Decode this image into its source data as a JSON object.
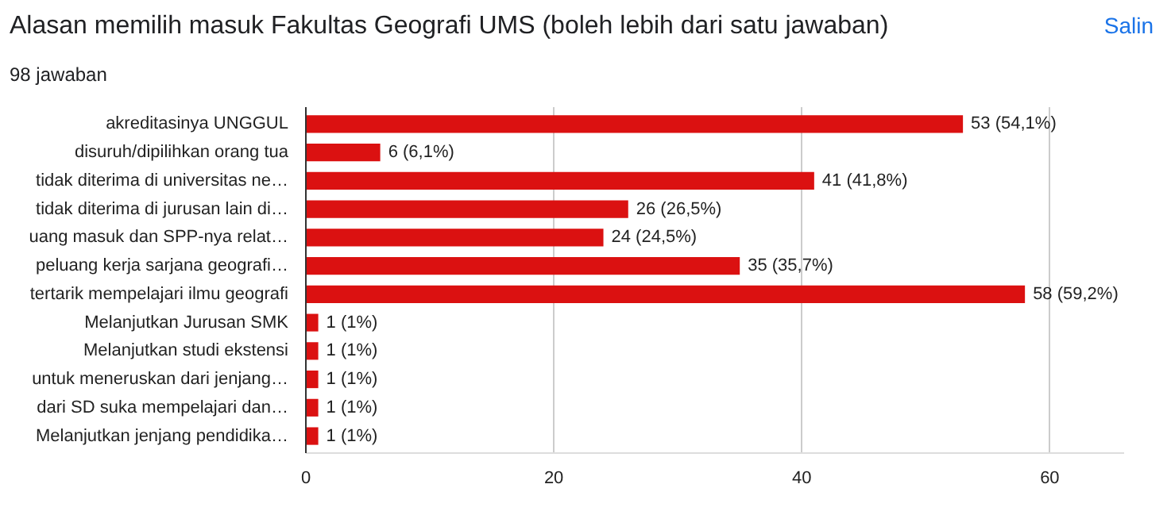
{
  "chart_data": {
    "type": "bar",
    "orientation": "horizontal",
    "title": "Alasan memilih masuk Fakultas Geografi UMS (boleh lebih dari satu jawaban)",
    "subtitle": "98 jawaban",
    "annotations": [
      "Salin"
    ],
    "categories": [
      "akreditasinya UNGGUL",
      "disuruh/dipilihkan orang tua",
      "tidak diterima di universitas ne…",
      "tidak diterima di jurusan lain di…",
      "uang masuk dan SPP-nya relat…",
      "peluang kerja sarjana geografi…",
      "tertarik mempelajari ilmu geografi",
      "Melanjutkan Jurusan SMK",
      "Melanjutkan studi ekstensi",
      "untuk meneruskan dari jenjang…",
      "dari SD suka mempelajari dan…",
      "Melanjutkan jenjang pendidika…"
    ],
    "values": [
      53,
      6,
      41,
      26,
      24,
      35,
      58,
      1,
      1,
      1,
      1,
      1
    ],
    "value_labels": [
      "53 (54,1%)",
      "6 (6,1%)",
      "41 (41,8%)",
      "26 (26,5%)",
      "24 (24,5%)",
      "35 (35,7%)",
      "58 (59,2%)",
      "1 (1%)",
      "1 (1%)",
      "1 (1%)",
      "1 (1%)",
      "1 (1%)"
    ],
    "color": "#db1111",
    "xlim": [
      0,
      66
    ],
    "xticks": [
      0,
      20,
      40,
      60
    ],
    "grid": "x"
  }
}
